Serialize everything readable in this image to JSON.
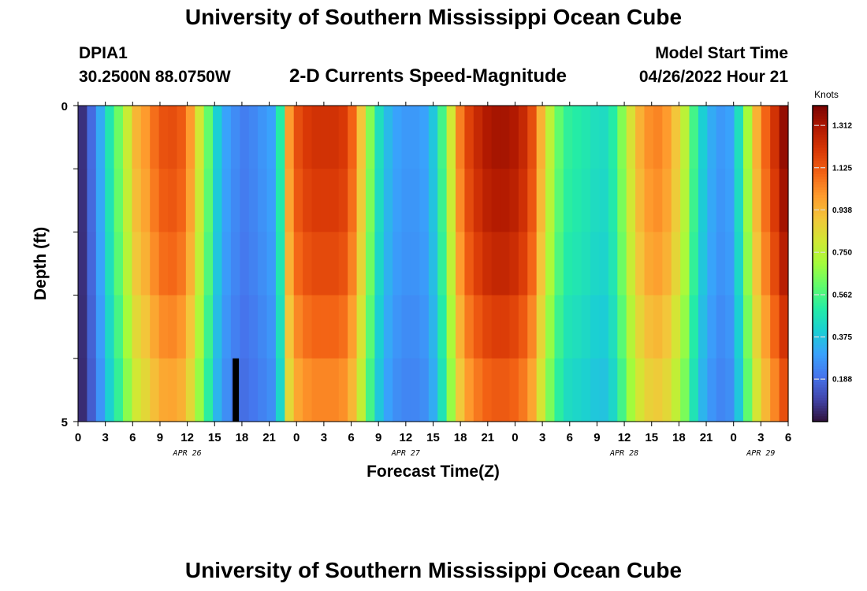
{
  "title": "University of Southern Mississippi Ocean Cube",
  "footer_title": "University of Southern Mississippi Ocean Cube",
  "station": {
    "id": "DPIA1",
    "coords": "30.2500N  88.0750W"
  },
  "subtitle": "2-D Currents Speed-Magnitude",
  "model_start": {
    "label": "Model Start Time",
    "value": "04/26/2022 Hour 21"
  },
  "chart_data": {
    "type": "heatmap",
    "title": "2-D Currents Speed-Magnitude",
    "xlabel": "Forecast Time(Z)",
    "ylabel": "Depth (ft)",
    "x_hours": [
      0,
      1,
      2,
      3,
      4,
      5,
      6,
      7,
      8,
      9,
      10,
      11,
      12,
      13,
      14,
      15,
      16,
      17,
      18,
      19,
      20,
      21,
      22,
      23,
      24,
      25,
      26,
      27,
      28,
      29,
      30,
      31,
      32,
      33,
      34,
      35,
      36,
      37,
      38,
      39,
      40,
      41,
      42,
      43,
      44,
      45,
      46,
      47,
      48,
      49,
      50,
      51,
      52,
      53,
      54,
      55,
      56,
      57,
      58,
      59,
      60,
      61,
      62,
      63,
      64,
      65,
      66,
      67,
      68,
      69,
      70,
      71,
      72,
      73,
      74,
      75,
      76,
      77,
      78
    ],
    "x_tick_labels": [
      "0",
      "3",
      "6",
      "9",
      "12",
      "15",
      "18",
      "21",
      "0",
      "3",
      "6",
      "9",
      "12",
      "15",
      "18",
      "21",
      "0",
      "3",
      "6",
      "9",
      "12",
      "15",
      "18",
      "21",
      "0",
      "3",
      "6"
    ],
    "y_range": [
      0,
      5
    ],
    "y_tick_labels": [
      "0",
      "5"
    ],
    "day_labels": [
      {
        "text": "APR 26",
        "hour": 12
      },
      {
        "text": "APR 27",
        "hour": 36
      },
      {
        "text": "APR 28",
        "hour": 60
      },
      {
        "text": "APR 29",
        "hour": 75
      }
    ],
    "depth_layers": 5,
    "base_profile_knots": [
      0.06,
      0.18,
      0.32,
      0.48,
      0.62,
      0.78,
      0.94,
      1.0,
      1.08,
      1.14,
      1.15,
      1.12,
      1.0,
      0.8,
      0.6,
      0.4,
      0.3,
      0.25,
      0.22,
      0.24,
      0.27,
      0.3,
      0.5,
      1.0,
      1.15,
      1.2,
      1.22,
      1.22,
      1.22,
      1.2,
      1.1,
      0.9,
      0.65,
      0.45,
      0.35,
      0.3,
      0.28,
      0.28,
      0.3,
      0.38,
      0.55,
      0.8,
      1.05,
      1.18,
      1.25,
      1.3,
      1.32,
      1.32,
      1.3,
      1.25,
      1.15,
      0.95,
      0.75,
      0.6,
      0.52,
      0.5,
      0.48,
      0.45,
      0.44,
      0.5,
      0.65,
      0.82,
      0.95,
      1.02,
      1.04,
      1.0,
      0.9,
      0.75,
      0.55,
      0.4,
      0.32,
      0.28,
      0.3,
      0.45,
      0.7,
      0.95,
      1.1,
      1.22,
      1.35
    ],
    "layer_multipliers": [
      1.0,
      0.98,
      0.95,
      0.9,
      0.85
    ],
    "gap_marker": {
      "hour": 17,
      "layer": 5
    },
    "colorbar": {
      "label": "Knots",
      "min": 0.0,
      "max": 1.4,
      "ticks": [
        1.312,
        1.125,
        0.938,
        0.75,
        0.562,
        0.375,
        0.188
      ],
      "tick_labels": [
        "1.312",
        "1.125",
        "0.938",
        "0.750",
        "0.562",
        "0.375",
        "0.188"
      ],
      "stops": [
        "#30123b",
        "#4145ab",
        "#4675ed",
        "#39a2fc",
        "#1bcfd4",
        "#24eca6",
        "#61fc6c",
        "#a4fc3b",
        "#d1e834",
        "#f3c63a",
        "#fe9b2d",
        "#f36315",
        "#d93806",
        "#b11901",
        "#7a0402"
      ]
    }
  }
}
